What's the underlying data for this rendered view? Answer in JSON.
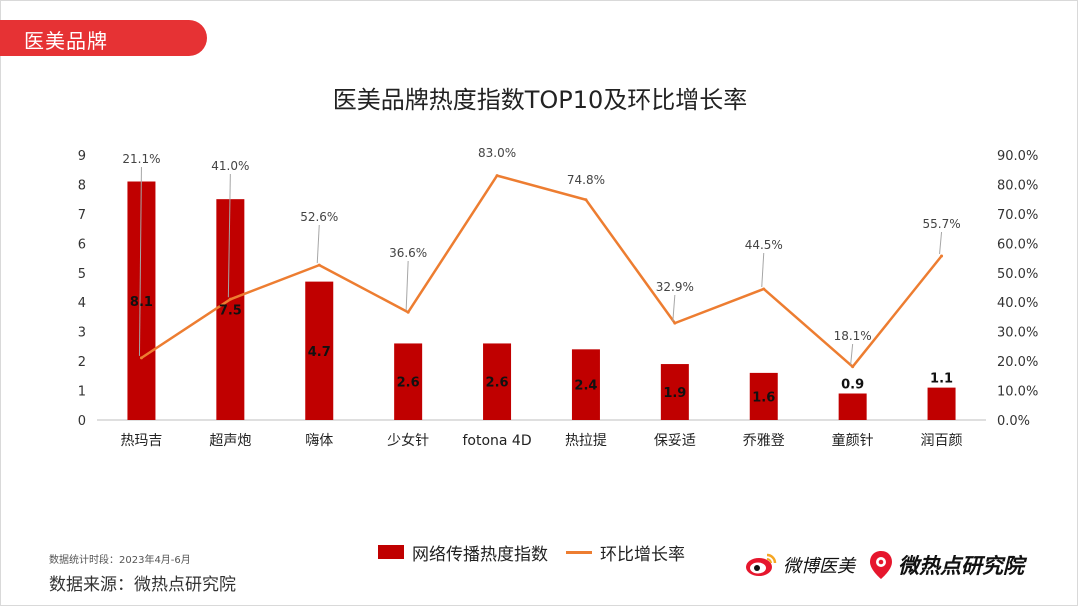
{
  "header": {
    "tab_label": "医美品牌"
  },
  "chart_data": {
    "type": "bar",
    "title": "医美品牌热度指数TOP10及环比增长率",
    "categories": [
      "热玛吉",
      "超声炮",
      "嗨体",
      "少女针",
      "fotona 4D",
      "热拉提",
      "保妥适",
      "乔雅登",
      "童颜针",
      "润百颜"
    ],
    "series": [
      {
        "name": "网络传播热度指数",
        "type": "bar",
        "axis": "left",
        "color": "#c00000",
        "values": [
          8.1,
          7.5,
          4.7,
          2.6,
          2.6,
          2.4,
          1.9,
          1.6,
          0.9,
          1.1
        ],
        "labels": [
          "8.1",
          "7.5",
          "4.7",
          "2.6",
          "2.6",
          "2.4",
          "1.9",
          "1.6",
          "0.9",
          "1.1"
        ]
      },
      {
        "name": "环比增长率",
        "type": "line",
        "axis": "right",
        "color": "#ed7d31",
        "values": [
          21.1,
          41.0,
          52.6,
          36.6,
          83.0,
          74.8,
          32.9,
          44.5,
          18.1,
          55.7
        ],
        "labels": [
          "21.1%",
          "41.0%",
          "52.6%",
          "36.6%",
          "83.0%",
          "74.8%",
          "32.9%",
          "44.5%",
          "18.1%",
          "55.7%"
        ]
      }
    ],
    "y_left": {
      "min": 0,
      "max": 9,
      "ticks": [
        "0",
        "1",
        "2",
        "3",
        "4",
        "5",
        "6",
        "7",
        "8",
        "9"
      ]
    },
    "y_right": {
      "min": 0,
      "max": 90,
      "ticks": [
        "0.0%",
        "10.0%",
        "20.0%",
        "30.0%",
        "40.0%",
        "50.0%",
        "60.0%",
        "70.0%",
        "80.0%",
        "90.0%"
      ]
    },
    "grid": false,
    "legend_position": "bottom"
  },
  "legend": {
    "bar_label": "网络传播热度指数",
    "line_label": "环比增长率"
  },
  "footer": {
    "period": "数据统计时段：2023年4月-6月",
    "source": "数据来源：微热点研究院",
    "logo_weibo_text": "微博医美",
    "logo_wrd_text": "微热点研究院"
  }
}
